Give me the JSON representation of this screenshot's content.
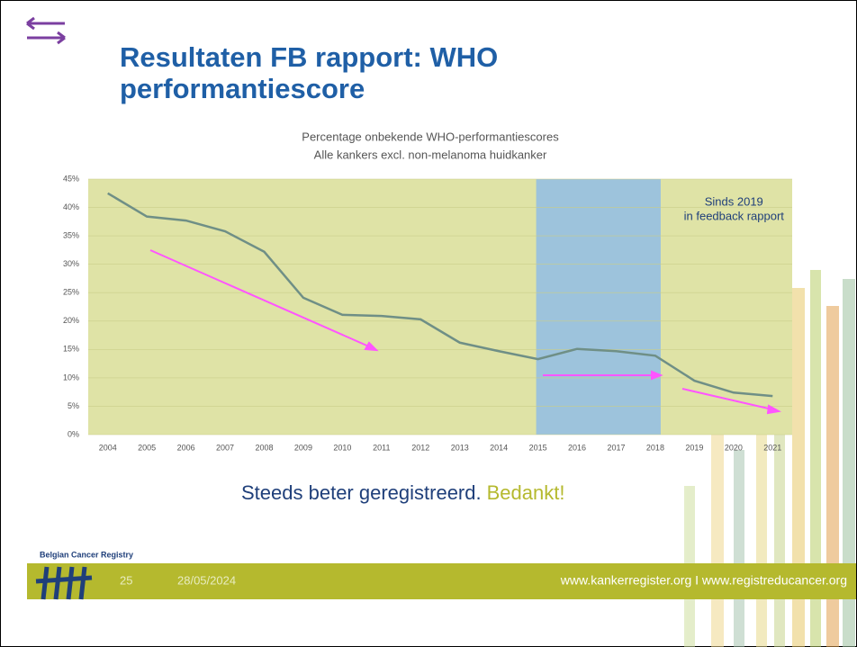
{
  "slide": {
    "title_lines": [
      "Resultaten FB rapport: WHO",
      "performantiescore"
    ],
    "message": "Steeds beter geregistreerd.",
    "message_accent": "Bedankt!",
    "logo_text": "Belgian Cancer Registry",
    "page_number": "25",
    "date": "28/05/2024",
    "footer_links": "www.kankerregister.org I www.registreducancer.org"
  },
  "chart_data": {
    "type": "line",
    "title_lines": [
      "Percentage onbekende WHO-performantiescores",
      "Alle kankers excl. non-melanoma huidkanker"
    ],
    "categories": [
      "2004",
      "2005",
      "2006",
      "2007",
      "2008",
      "2009",
      "2010",
      "2011",
      "2012",
      "2013",
      "2014",
      "2015",
      "2016",
      "2017",
      "2018",
      "2019",
      "2020",
      "2021"
    ],
    "series": [
      {
        "name": "Percentage onbekend",
        "color": "#6f8f86",
        "values": [
          42.5,
          38.4,
          37.7,
          35.8,
          32.2,
          24.1,
          21.1,
          20.9,
          20.3,
          16.2,
          14.7,
          13.3,
          15.1,
          14.7,
          13.9,
          9.5,
          7.4,
          6.8
        ]
      }
    ],
    "ylim": [
      0,
      45
    ],
    "yticks": [
      {
        "value": 0,
        "label": "0%"
      },
      {
        "value": 5,
        "label": "5%"
      },
      {
        "value": 10,
        "label": "10%"
      },
      {
        "value": 15,
        "label": "15%"
      },
      {
        "value": 20,
        "label": "20%"
      },
      {
        "value": 25,
        "label": "25%"
      },
      {
        "value": 30,
        "label": "30%"
      },
      {
        "value": 35,
        "label": "35%"
      },
      {
        "value": 40,
        "label": "40%"
      },
      {
        "value": 45,
        "label": "45%"
      }
    ],
    "background_color": "#dfe3a6",
    "highlight_range": [
      "2015",
      "2018"
    ],
    "highlight_color": "#9dc3dc",
    "annotation_lines": [
      "Sinds 2019",
      "in feedback rapport"
    ]
  }
}
